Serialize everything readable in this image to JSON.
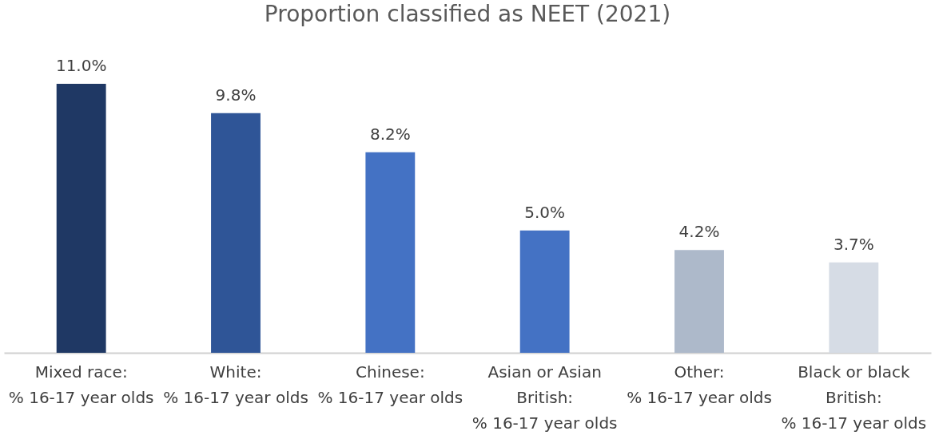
{
  "chart_data": {
    "type": "bar",
    "title": "Proportion classified as NEET (2021)",
    "categories": [
      "Mixed race:\n% 16-17 year olds",
      "White:\n% 16-17 year olds",
      "Chinese:\n% 16-17 year olds",
      "Asian or Asian\nBritish:\n% 16-17 year olds",
      "Other:\n% 16-17 year olds",
      "Black or black\nBritish:\n% 16-17 year olds"
    ],
    "values": [
      11.0,
      9.8,
      8.2,
      5.0,
      4.2,
      3.7
    ],
    "colors": [
      "#1f3864",
      "#2f5597",
      "#4472c4",
      "#4472c4",
      "#adb9ca",
      "#d6dce5"
    ],
    "value_labels": [
      "11.0%",
      "9.8%",
      "8.2%",
      "5.0%",
      "4.2%",
      "3.7%"
    ],
    "grid": false
  }
}
